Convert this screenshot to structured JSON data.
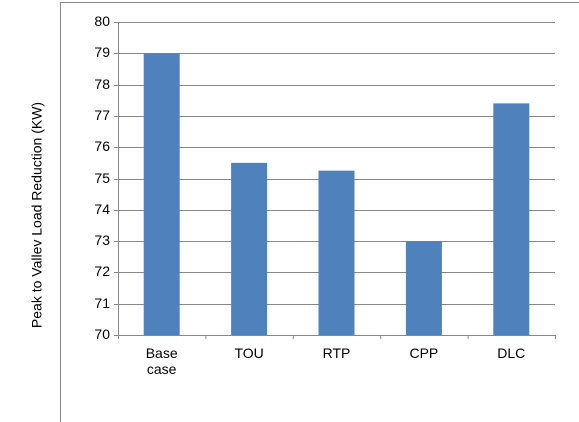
{
  "chart_data": {
    "type": "bar",
    "ylabel": "Peak to Vallev Load Reduction (KW)",
    "categories": [
      "Base case",
      "TOU",
      "RTP",
      "CPP",
      "DLC"
    ],
    "values": [
      79,
      75.5,
      75.25,
      73,
      77.4
    ],
    "color": "#4f81bd",
    "ylim": [
      70,
      80
    ],
    "yticks": [
      70,
      71,
      72,
      73,
      74,
      75,
      76,
      77,
      78,
      79,
      80
    ],
    "grid": true
  }
}
